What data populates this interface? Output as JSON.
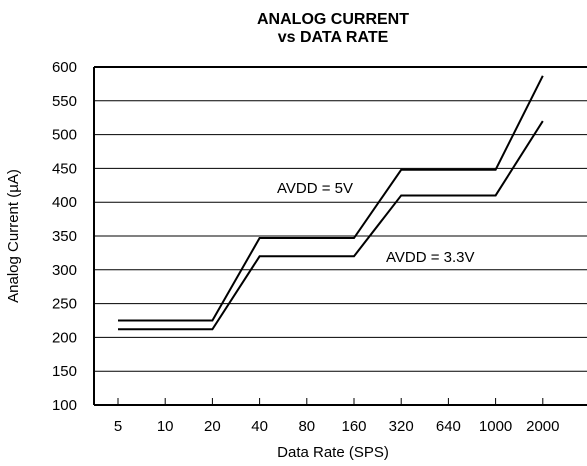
{
  "chart_data": {
    "type": "line",
    "title": [
      "ANALOG CURRENT",
      "vs DATA RATE"
    ],
    "xlabel": "Data Rate (SPS)",
    "ylabel": "Analog Current (µA)",
    "ylim": [
      100,
      600
    ],
    "yticks": [
      100,
      150,
      200,
      250,
      300,
      350,
      400,
      450,
      500,
      550,
      600
    ],
    "categories": [
      "5",
      "10",
      "20",
      "40",
      "80",
      "160",
      "320",
      "640",
      "1000",
      "2000"
    ],
    "grid": "horizontal",
    "series": [
      {
        "name": "AVDD = 5V",
        "points": [
          [
            5,
            225
          ],
          [
            10,
            225
          ],
          [
            20,
            225
          ],
          [
            40,
            347
          ],
          [
            80,
            347
          ],
          [
            160,
            347
          ],
          [
            320,
            448
          ],
          [
            640,
            448
          ],
          [
            1000,
            448
          ],
          [
            2000,
            587
          ]
        ]
      },
      {
        "name": "AVDD = 3.3V",
        "points": [
          [
            5,
            212
          ],
          [
            10,
            212
          ],
          [
            20,
            212
          ],
          [
            40,
            320
          ],
          [
            80,
            320
          ],
          [
            160,
            320
          ],
          [
            320,
            410
          ],
          [
            640,
            410
          ],
          [
            1000,
            410
          ],
          [
            2000,
            520
          ]
        ]
      }
    ]
  }
}
